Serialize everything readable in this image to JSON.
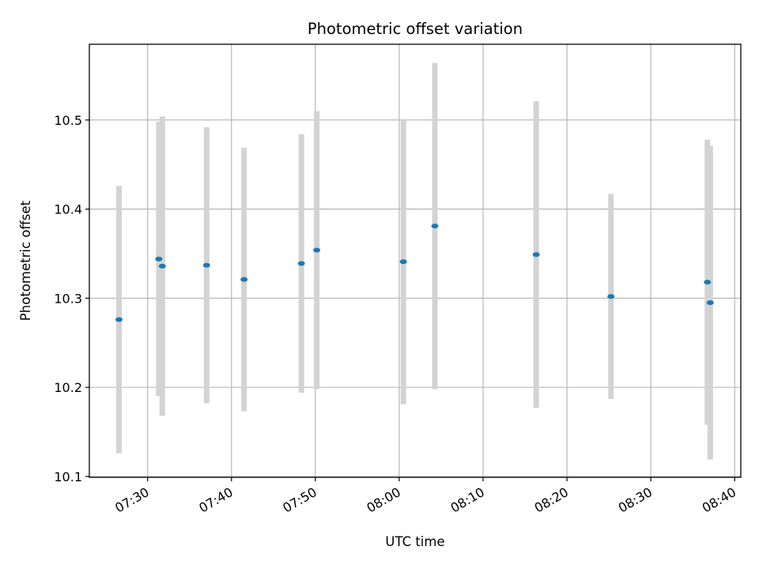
{
  "chart_data": {
    "type": "scatter",
    "title": "Photometric offset variation",
    "xlabel": "UTC time",
    "ylabel": "Photometric offset",
    "grid": true,
    "x_unit": "UTC clock time (HH:MM:SS)",
    "xlim": [
      "07:23:03",
      "08:40:44"
    ],
    "ylim": [
      10.099,
      10.585
    ],
    "x_ticks": [
      "07:30",
      "07:40",
      "07:50",
      "08:00",
      "08:10",
      "08:20",
      "08:30",
      "08:40"
    ],
    "y_ticks": [
      "10.1",
      "10.2",
      "10.3",
      "10.4",
      "10.5"
    ],
    "colors": {
      "point": "#1f77b4",
      "errorbar": "#d3d3d3",
      "grid": "#b0b0b0"
    },
    "points": [
      {
        "x": "07:26:35",
        "y": 10.276,
        "err": 0.15
      },
      {
        "x": "07:31:20",
        "y": 10.344,
        "err": 0.154
      },
      {
        "x": "07:31:45",
        "y": 10.336,
        "err": 0.168
      },
      {
        "x": "07:37:02",
        "y": 10.337,
        "err": 0.155
      },
      {
        "x": "07:41:30",
        "y": 10.321,
        "err": 0.148
      },
      {
        "x": "07:48:20",
        "y": 10.339,
        "err": 0.145
      },
      {
        "x": "07:50:10",
        "y": 10.354,
        "err": 0.156
      },
      {
        "x": "08:00:30",
        "y": 10.341,
        "err": 0.16
      },
      {
        "x": "08:04:15",
        "y": 10.381,
        "err": 0.183
      },
      {
        "x": "08:16:20",
        "y": 10.349,
        "err": 0.172
      },
      {
        "x": "08:25:15",
        "y": 10.302,
        "err": 0.115
      },
      {
        "x": "08:36:45",
        "y": 10.318,
        "err": 0.16
      },
      {
        "x": "08:37:05",
        "y": 10.295,
        "err": 0.176
      }
    ]
  }
}
